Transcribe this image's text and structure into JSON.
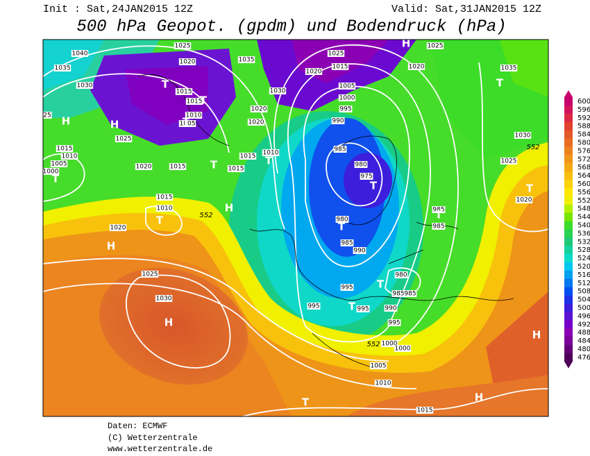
{
  "header": {
    "init": "Init : Sat,24JAN2015 12Z",
    "valid": "Valid: Sat,31JAN2015 12Z",
    "title": "500 hPa Geopot. (gpdm) und Bodendruck (hPa)"
  },
  "legend": {
    "values": [
      600,
      596,
      592,
      588,
      584,
      580,
      576,
      572,
      568,
      564,
      560,
      556,
      552,
      548,
      544,
      540,
      536,
      532,
      528,
      524,
      520,
      516,
      512,
      508,
      504,
      500,
      496,
      492,
      488,
      484,
      480,
      476
    ],
    "colors": [
      "#c8006e",
      "#d2145a",
      "#dc2846",
      "#e0402e",
      "#e45a28",
      "#e86e23",
      "#ec821e",
      "#f09619",
      "#f4aa14",
      "#f8be0f",
      "#fcd20a",
      "#ffe600",
      "#f0f000",
      "#b4f000",
      "#78e600",
      "#3cdc28",
      "#28d250",
      "#1ec878",
      "#14d2a0",
      "#0adcc8",
      "#00c8f0",
      "#00a0f0",
      "#0078f0",
      "#0050f0",
      "#1e32e6",
      "#3c1edc",
      "#5a14d2",
      "#7800c8",
      "#8c00b4",
      "#7a0096",
      "#640078",
      "#50005a"
    ]
  },
  "map": {
    "isobar_labels": [
      "1040",
      "1035",
      "1030",
      "1025",
      "1020",
      "1035",
      "1030",
      "1025",
      "1015",
      "1020",
      "1005",
      "1000",
      "995",
      "990",
      "1015",
      "1015",
      "1010",
      "1005",
      "1020",
      "1020",
      "1025",
      "1020",
      "1015",
      "1015",
      "1015",
      "1010",
      "985",
      "980",
      "975",
      "980",
      "985",
      "990",
      "995",
      "995",
      "995",
      "990",
      "995",
      "980",
      "985",
      "985",
      "985",
      "985",
      "1000",
      "1000",
      "1005",
      "1010",
      "1015",
      "1020",
      "1025",
      "1035",
      "1030",
      "1025",
      "1020",
      "1025",
      "1030",
      "1020",
      "1015",
      "1010",
      "1015",
      "1010",
      "1005",
      "1000",
      "25"
    ],
    "centers": [
      "H",
      "H",
      "T",
      "T",
      "T",
      "T",
      "T",
      "H",
      "H",
      "T",
      "T",
      "T",
      "T",
      "T",
      "T",
      "T",
      "H",
      "T",
      "T",
      "H",
      "T",
      "H",
      "H"
    ],
    "geopotential_labels": [
      "552",
      "552",
      "552"
    ]
  },
  "footer": {
    "source": "Daten: ECMWF",
    "copyright": "(C) Wetterzentrale",
    "url": "www.wetterzentrale.de"
  }
}
